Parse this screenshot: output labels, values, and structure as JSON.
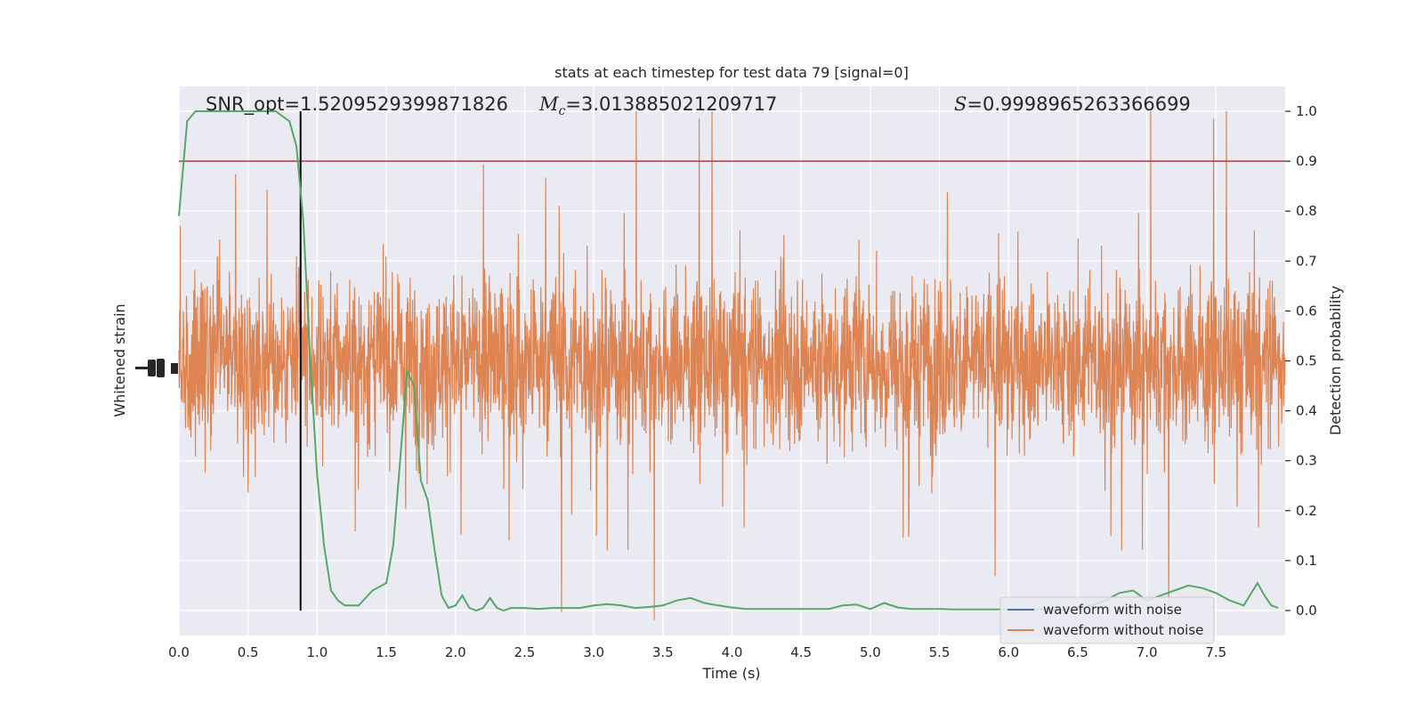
{
  "chart_data": {
    "type": "line",
    "title": "stats at each timestep for test data 79 [signal=0]",
    "xlabel": "Time (s)",
    "ylabel_left": "Whitened strain",
    "ylabel_right": "Detection probability",
    "xlim": [
      0,
      8
    ],
    "ylim_right": [
      -0.05,
      1.05
    ],
    "x_ticks": [
      "0.0",
      "0.5",
      "1.0",
      "1.5",
      "2.0",
      "2.5",
      "3.0",
      "3.5",
      "4.0",
      "4.5",
      "5.0",
      "5.5",
      "6.0",
      "6.5",
      "7.0",
      "7.5"
    ],
    "y_right_ticks": [
      "0.0",
      "0.1",
      "0.2",
      "0.3",
      "0.4",
      "0.5",
      "0.6",
      "0.7",
      "0.8",
      "0.9",
      "1.0"
    ],
    "grid": true,
    "threshold": 0.9,
    "vertical_marker_x": 0.88,
    "annotations": {
      "snr_label": "SNR_opt=1.5209529399871826",
      "mc_symbol": "M",
      "mc_sub": "c",
      "mc_value": "=3.013885021209717",
      "s_symbol": "S",
      "s_value": "=0.9998965263366699"
    },
    "legend": {
      "position": "lower-right",
      "entries": [
        "waveform with noise",
        "waveform without noise"
      ]
    },
    "colors": {
      "noise_waveform": "#dd8452",
      "clean_waveform": "#4c72b0",
      "probability": "#55a868",
      "threshold": "#c44e52",
      "marker": "#000000",
      "background": "#eaeaf2",
      "grid": "#ffffff"
    },
    "series": [
      {
        "name": "probability",
        "x": [
          0.0,
          0.06,
          0.12,
          0.2,
          0.3,
          0.4,
          0.5,
          0.6,
          0.7,
          0.8,
          0.85,
          0.9,
          0.95,
          1.0,
          1.05,
          1.1,
          1.15,
          1.2,
          1.3,
          1.4,
          1.5,
          1.55,
          1.6,
          1.65,
          1.7,
          1.75,
          1.8,
          1.85,
          1.9,
          1.95,
          2.0,
          2.05,
          2.1,
          2.15,
          2.2,
          2.25,
          2.3,
          2.35,
          2.4,
          2.45,
          2.5,
          2.6,
          2.7,
          2.8,
          2.9,
          3.0,
          3.1,
          3.2,
          3.3,
          3.4,
          3.5,
          3.6,
          3.7,
          3.8,
          3.9,
          4.0,
          4.1,
          4.2,
          4.3,
          4.4,
          4.5,
          4.6,
          4.7,
          4.8,
          4.9,
          5.0,
          5.1,
          5.2,
          5.3,
          5.4,
          5.5,
          5.6,
          5.7,
          5.8,
          5.9,
          6.0,
          6.1,
          6.2,
          6.3,
          6.4,
          6.5,
          6.6,
          6.7,
          6.8,
          6.9,
          7.0,
          7.1,
          7.2,
          7.3,
          7.4,
          7.5,
          7.6,
          7.7,
          7.8,
          7.85,
          7.9,
          7.95
        ],
        "values": [
          0.79,
          0.98,
          1.0,
          1.0,
          1.0,
          1.0,
          1.0,
          1.0,
          1.0,
          0.98,
          0.93,
          0.78,
          0.5,
          0.27,
          0.13,
          0.04,
          0.02,
          0.01,
          0.01,
          0.04,
          0.055,
          0.13,
          0.3,
          0.48,
          0.45,
          0.26,
          0.22,
          0.12,
          0.03,
          0.005,
          0.01,
          0.03,
          0.005,
          0.0,
          0.005,
          0.025,
          0.005,
          0.0,
          0.005,
          0.005,
          0.005,
          0.003,
          0.005,
          0.005,
          0.005,
          0.01,
          0.013,
          0.01,
          0.005,
          0.007,
          0.01,
          0.02,
          0.025,
          0.015,
          0.01,
          0.006,
          0.003,
          0.003,
          0.003,
          0.003,
          0.003,
          0.003,
          0.003,
          0.01,
          0.012,
          0.003,
          0.015,
          0.006,
          0.003,
          0.003,
          0.003,
          0.002,
          0.002,
          0.002,
          0.002,
          0.002,
          0.002,
          0.002,
          0.002,
          0.002,
          0.002,
          0.01,
          0.02,
          0.035,
          0.04,
          0.02,
          0.03,
          0.04,
          0.05,
          0.045,
          0.035,
          0.02,
          0.01,
          0.055,
          0.03,
          0.01,
          0.005
        ]
      }
    ]
  }
}
